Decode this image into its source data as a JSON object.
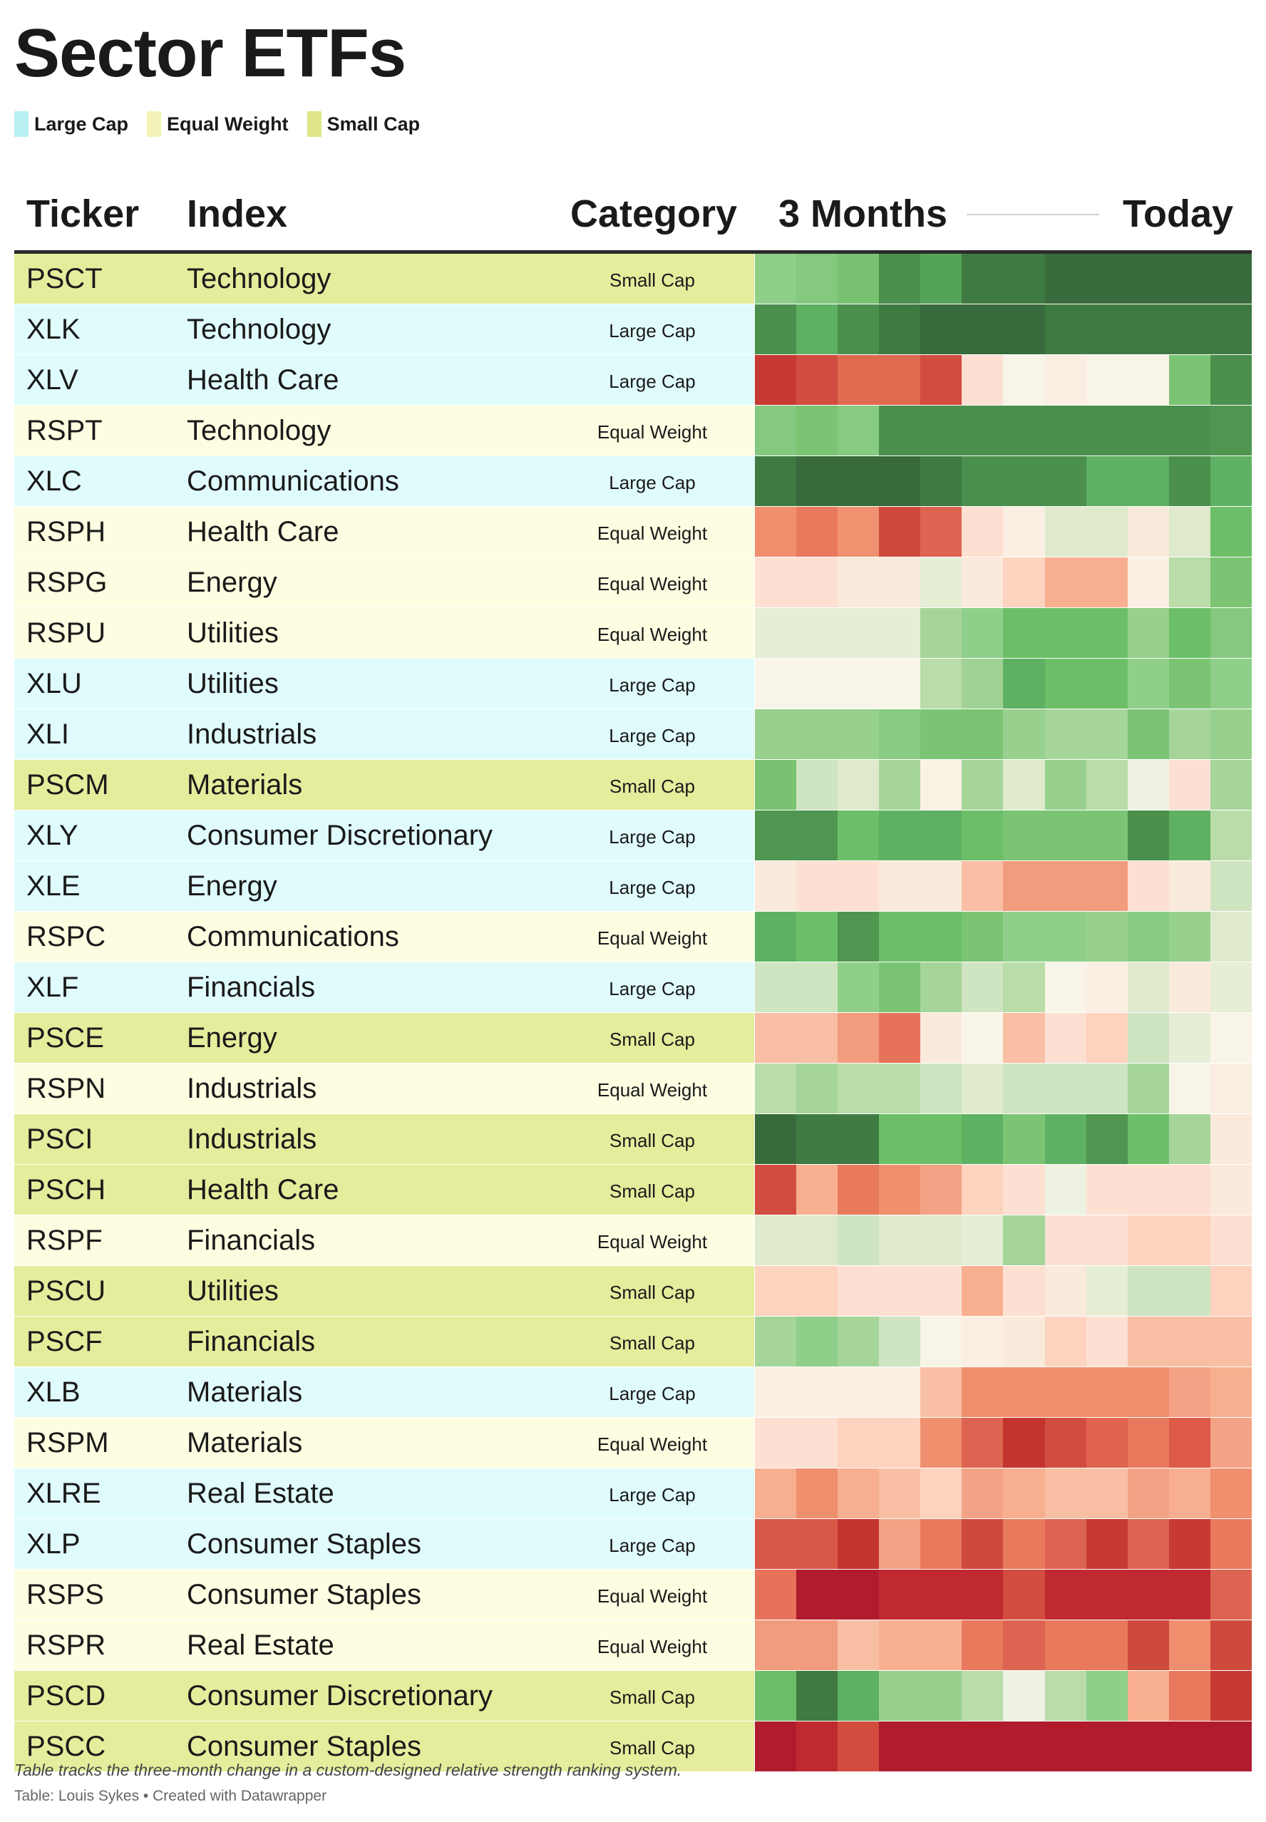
{
  "title": "Sector ETFs",
  "legend": [
    {
      "label": "Large Cap",
      "color": "#b8f0f2"
    },
    {
      "label": "Equal Weight",
      "color": "#f5f4b8"
    },
    {
      "label": "Small Cap",
      "color": "#dfe78a"
    }
  ],
  "category_colors": {
    "Large Cap": "#e0fbfc",
    "Equal Weight": "#fdfde1",
    "Small Cap": "#e5ec9c"
  },
  "headers": {
    "ticker": "Ticker",
    "index": "Index",
    "category": "Category",
    "start": "3 Months",
    "end": "Today"
  },
  "footer": {
    "note": "Table tracks the three-month change in a custom-designed relative strength ranking system.",
    "source": "Table: Louis Sykes • Created with Datawrapper"
  },
  "chart_data": {
    "type": "heatmap",
    "color_scale": "red (weak) to green (strong)",
    "rows": [
      {
        "ticker": "PSCT",
        "index": "Technology",
        "category": "Small Cap",
        "cells": [
          "#8fcf8a",
          "#84c97f",
          "#78c271",
          "#4a8f4c",
          "#55a358",
          "#3f7a42",
          "#3f7a42",
          "#386b3b",
          "#386b3b",
          "#386b3b",
          "#386b3b",
          "#386b3b"
        ]
      },
      {
        "ticker": "XLK",
        "index": "Technology",
        "category": "Large Cap",
        "cells": [
          "#4a8f4c",
          "#5eb062",
          "#4a8f4c",
          "#3f7a42",
          "#386b3b",
          "#386b3b",
          "#386b3b",
          "#3f7a42",
          "#3f7a42",
          "#3f7a42",
          "#3f7a42",
          "#3f7a42"
        ]
      },
      {
        "ticker": "XLV",
        "index": "Health Care",
        "category": "Large Cap",
        "cells": [
          "#c73a34",
          "#d24c40",
          "#df6a50",
          "#df6a50",
          "#d24c40",
          "#fde0d2",
          "#f8f5e8",
          "#faeee2",
          "#f8f5e8",
          "#f8f5e8",
          "#7bc474",
          "#4a8f4c"
        ]
      },
      {
        "ticker": "RSPT",
        "index": "Technology",
        "category": "Equal Weight",
        "cells": [
          "#84c97f",
          "#7bc474",
          "#88cb82",
          "#4a8f4c",
          "#4a8f4c",
          "#4a8f4c",
          "#4a8f4c",
          "#4a8f4c",
          "#4a8f4c",
          "#4a8f4c",
          "#4a8f4c",
          "#4f9651"
        ]
      },
      {
        "ticker": "XLC",
        "index": "Communications",
        "category": "Large Cap",
        "cells": [
          "#3f7a42",
          "#386b3b",
          "#386b3b",
          "#386b3b",
          "#3f7a42",
          "#4a8f4c",
          "#4a8f4c",
          "#4a8f4c",
          "#5eb062",
          "#5eb062",
          "#4a8f4c",
          "#5eb062"
        ]
      },
      {
        "ticker": "RSPH",
        "index": "Health Care",
        "category": "Equal Weight",
        "cells": [
          "#f08f6e",
          "#e9795d",
          "#f0916f",
          "#ce4a3d",
          "#dc6450",
          "#fde0d2",
          "#faefe2",
          "#dfeacc",
          "#dfeacc",
          "#faeadb",
          "#dfeacc",
          "#6cbf68"
        ]
      },
      {
        "ticker": "RSPG",
        "index": "Energy",
        "category": "Equal Weight",
        "cells": [
          "#fde0d2",
          "#fde0d2",
          "#faeadb",
          "#faeadb",
          "#e6eed6",
          "#faeadb",
          "#fdd2bf",
          "#f8af90",
          "#f8af90",
          "#faefe2",
          "#b9dca8",
          "#7bc474"
        ]
      },
      {
        "ticker": "RSPU",
        "index": "Utilities",
        "category": "Equal Weight",
        "cells": [
          "#e6eed6",
          "#e6eed6",
          "#e6eed6",
          "#e6eed6",
          "#a6d59a",
          "#8fcf8a",
          "#6cbf68",
          "#6cbf68",
          "#6cbf68",
          "#97d18d",
          "#6cbf68",
          "#84c97f"
        ]
      },
      {
        "ticker": "XLU",
        "index": "Utilities",
        "category": "Large Cap",
        "cells": [
          "#f8f5e8",
          "#f8f5e8",
          "#f8f5e8",
          "#f8f5e8",
          "#b9dca8",
          "#9fd294",
          "#5eb062",
          "#6cbf68",
          "#6cbf68",
          "#8fcf8a",
          "#7bc474",
          "#8fcf8a"
        ]
      },
      {
        "ticker": "XLI",
        "index": "Industrials",
        "category": "Large Cap",
        "cells": [
          "#97d18d",
          "#97d18d",
          "#97d18d",
          "#88cb82",
          "#7bc474",
          "#7bc474",
          "#97d18d",
          "#a6d59a",
          "#a6d59a",
          "#7bc474",
          "#a6d59a",
          "#97d18d"
        ]
      },
      {
        "ticker": "PSCM",
        "index": "Materials",
        "category": "Small Cap",
        "cells": [
          "#78c271",
          "#cfe4c0",
          "#dfeacc",
          "#a6d59a",
          "#faf2e5",
          "#a6d59a",
          "#dfeacc",
          "#97d18d",
          "#b9dca8",
          "#eef2e2",
          "#fde0d2",
          "#a6d59a"
        ]
      },
      {
        "ticker": "XLY",
        "index": "Consumer Discretionary",
        "category": "Large Cap",
        "cells": [
          "#4f9651",
          "#4f9651",
          "#6cbf68",
          "#5eb062",
          "#5eb062",
          "#6cbf68",
          "#7bc474",
          "#7bc474",
          "#7bc474",
          "#4a8f4c",
          "#5eb062",
          "#b9dca8"
        ]
      },
      {
        "ticker": "XLE",
        "index": "Energy",
        "category": "Large Cap",
        "cells": [
          "#faeadb",
          "#fde0d2",
          "#fde0d2",
          "#faeadb",
          "#faeadb",
          "#f8bfa4",
          "#f29c7e",
          "#f29c7e",
          "#f29c7e",
          "#fde0d2",
          "#faeadb",
          "#cfe4c0"
        ]
      },
      {
        "ticker": "RSPC",
        "index": "Communications",
        "category": "Equal Weight",
        "cells": [
          "#5eb062",
          "#6cbf68",
          "#4f9651",
          "#6cbf68",
          "#6cbf68",
          "#7bc474",
          "#8fcf8a",
          "#8fcf8a",
          "#97d18d",
          "#88cb82",
          "#97d18d",
          "#dfeacc"
        ]
      },
      {
        "ticker": "XLF",
        "index": "Financials",
        "category": "Large Cap",
        "cells": [
          "#cfe4c0",
          "#cfe4c0",
          "#8fcf8a",
          "#7bc474",
          "#a6d59a",
          "#cfe4c0",
          "#b9dca8",
          "#f8f5e8",
          "#faefe2",
          "#dfeacc",
          "#faeadb",
          "#e6eed6"
        ]
      },
      {
        "ticker": "PSCE",
        "index": "Energy",
        "category": "Small Cap",
        "cells": [
          "#f8bfa4",
          "#f8bfa4",
          "#f29c7e",
          "#e6725a",
          "#faeadb",
          "#f8f5e8",
          "#f8bfa4",
          "#fde0d2",
          "#fdd2bf",
          "#cfe4c0",
          "#e6eed6",
          "#f8f5e8"
        ]
      },
      {
        "ticker": "RSPN",
        "index": "Industrials",
        "category": "Equal Weight",
        "cells": [
          "#b9dca8",
          "#a6d59a",
          "#b9dca8",
          "#b9dca8",
          "#cfe4c0",
          "#dfeacc",
          "#cfe4c0",
          "#cfe4c0",
          "#cfe4c0",
          "#a6d59a",
          "#f8f5e8",
          "#faeee2"
        ]
      },
      {
        "ticker": "PSCI",
        "index": "Industrials",
        "category": "Small Cap",
        "cells": [
          "#386b3b",
          "#3f7a42",
          "#3f7a42",
          "#6cbf68",
          "#6cbf68",
          "#5eb062",
          "#7bc474",
          "#5eb062",
          "#4f9651",
          "#6cbf68",
          "#a6d59a",
          "#faeadb"
        ]
      },
      {
        "ticker": "PSCH",
        "index": "Health Care",
        "category": "Small Cap",
        "cells": [
          "#d24c40",
          "#f8af90",
          "#e9795d",
          "#f08f6e",
          "#f4a285",
          "#fdd2bf",
          "#fde0d2",
          "#eef2e2",
          "#fde0d2",
          "#fde0d2",
          "#fde0d2",
          "#faeadb"
        ]
      },
      {
        "ticker": "RSPF",
        "index": "Financials",
        "category": "Equal Weight",
        "cells": [
          "#dfeacc",
          "#dfeacc",
          "#cfe4c0",
          "#dfeacc",
          "#dfeacc",
          "#e6eed6",
          "#a6d59a",
          "#fde0d2",
          "#fde0d2",
          "#fdd2bf",
          "#fdd2bf",
          "#fde0d2"
        ]
      },
      {
        "ticker": "PSCU",
        "index": "Utilities",
        "category": "Small Cap",
        "cells": [
          "#fdd2bf",
          "#fdd2bf",
          "#fde0d2",
          "#fde0d2",
          "#fde0d2",
          "#f8af90",
          "#fde0d2",
          "#faeadb",
          "#e6eed6",
          "#cfe4c0",
          "#cfe4c0",
          "#fdd2bf"
        ]
      },
      {
        "ticker": "PSCF",
        "index": "Financials",
        "category": "Small Cap",
        "cells": [
          "#a6d59a",
          "#8fcf8a",
          "#a6d59a",
          "#cfe4c0",
          "#f8f5e8",
          "#faefe2",
          "#faeadb",
          "#fdd2bf",
          "#fde0d2",
          "#f8bfa4",
          "#f8bfa4",
          "#f8bfa4"
        ]
      },
      {
        "ticker": "XLB",
        "index": "Materials",
        "category": "Large Cap",
        "cells": [
          "#faeee2",
          "#faeee2",
          "#faeee2",
          "#faeee2",
          "#f8bfa4",
          "#f08f6e",
          "#f08f6e",
          "#f08f6e",
          "#f08f6e",
          "#f08f6e",
          "#f4a285",
          "#f8af90"
        ]
      },
      {
        "ticker": "RSPM",
        "index": "Materials",
        "category": "Equal Weight",
        "cells": [
          "#fde0d2",
          "#fde0d2",
          "#fdd2bf",
          "#fdd2bf",
          "#f08f6e",
          "#dc6450",
          "#c4342f",
          "#d24c40",
          "#e0644e",
          "#e9795d",
          "#dc5a47",
          "#f4a285"
        ]
      },
      {
        "ticker": "XLRE",
        "index": "Real Estate",
        "category": "Large Cap",
        "cells": [
          "#f8af90",
          "#f08f6e",
          "#f8af90",
          "#f8bfa4",
          "#fdd2bf",
          "#f4a285",
          "#f8af90",
          "#f8bfa4",
          "#f8bfa4",
          "#f4a285",
          "#f8af90",
          "#f08f6e"
        ]
      },
      {
        "ticker": "XLP",
        "index": "Consumer Staples",
        "category": "Large Cap",
        "cells": [
          "#d95746",
          "#d95746",
          "#c4342f",
          "#f4a285",
          "#e9795d",
          "#ce4a3d",
          "#e9795d",
          "#dc6450",
          "#c73a34",
          "#dc6450",
          "#c73a34",
          "#e9795d"
        ]
      },
      {
        "ticker": "RSPS",
        "index": "Consumer Staples",
        "category": "Equal Weight",
        "cells": [
          "#e6725a",
          "#b01c2e",
          "#b01c2e",
          "#c0292f",
          "#c0292f",
          "#c0292f",
          "#d24c40",
          "#c0292f",
          "#c0292f",
          "#c0292f",
          "#c0292f",
          "#dc6450"
        ]
      },
      {
        "ticker": "RSPR",
        "index": "Real Estate",
        "category": "Equal Weight",
        "cells": [
          "#f29c7e",
          "#f29c7e",
          "#f8bfa4",
          "#f8af90",
          "#f8af90",
          "#e9795d",
          "#dc6450",
          "#e9795d",
          "#e9795d",
          "#ce4a3d",
          "#f08f6e",
          "#ce4a3d"
        ]
      },
      {
        "ticker": "PSCD",
        "index": "Consumer Discretionary",
        "category": "Small Cap",
        "cells": [
          "#6cbf68",
          "#3f7a42",
          "#5eb062",
          "#97d18d",
          "#97d18d",
          "#b9dca8",
          "#eef2e2",
          "#b9dca8",
          "#8fcf8a",
          "#f8af90",
          "#e9795d",
          "#c73a34"
        ]
      },
      {
        "ticker": "PSCC",
        "index": "Consumer Staples",
        "category": "Small Cap",
        "cells": [
          "#b01c2e",
          "#c0292f",
          "#d24c40",
          "#b01c2e",
          "#b01c2e",
          "#b01c2e",
          "#b01c2e",
          "#b01c2e",
          "#b01c2e",
          "#b01c2e",
          "#b01c2e",
          "#b01c2e"
        ]
      }
    ]
  }
}
